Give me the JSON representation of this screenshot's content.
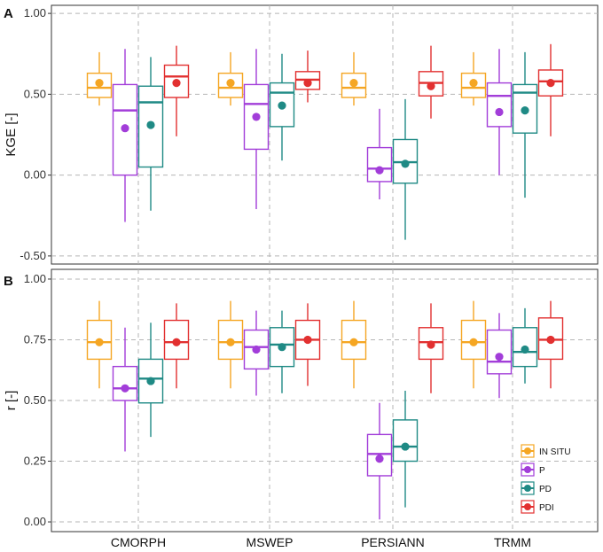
{
  "colors": {
    "IN SITU": "#f5a623",
    "P": "#a23dd9",
    "PD": "#1f8a85",
    "PDI": "#e23030"
  },
  "chart_data": [
    {
      "panel": "A",
      "type": "boxplot",
      "ylabel": "KGE [-]",
      "ylim": [
        -0.55,
        1.05
      ],
      "yticks": [
        -0.5,
        0.0,
        0.5,
        1.0
      ],
      "ytick_labels": [
        "-0.50",
        "0.00",
        "0.50",
        "1.00"
      ],
      "grid": true,
      "categories": [
        "CMORPH",
        "MSWEP",
        "PERSIANN",
        "TRMM"
      ],
      "groups": [
        {
          "category": "CMORPH",
          "series": [
            {
              "name": "IN SITU",
              "whislo": 0.43,
              "q1": 0.48,
              "median": 0.54,
              "q3": 0.63,
              "whishi": 0.76,
              "mean": 0.57
            },
            {
              "name": "P",
              "whislo": -0.29,
              "q1": 0.0,
              "median": 0.4,
              "q3": 0.56,
              "whishi": 0.78,
              "mean": 0.29
            },
            {
              "name": "PD",
              "whislo": -0.22,
              "q1": 0.05,
              "median": 0.45,
              "q3": 0.55,
              "whishi": 0.73,
              "mean": 0.31
            },
            {
              "name": "PDI",
              "whislo": 0.24,
              "q1": 0.48,
              "median": 0.61,
              "q3": 0.68,
              "whishi": 0.8,
              "mean": 0.57
            }
          ]
        },
        {
          "category": "MSWEP",
          "series": [
            {
              "name": "IN SITU",
              "whislo": 0.43,
              "q1": 0.48,
              "median": 0.54,
              "q3": 0.63,
              "whishi": 0.76,
              "mean": 0.57
            },
            {
              "name": "P",
              "whislo": -0.21,
              "q1": 0.16,
              "median": 0.44,
              "q3": 0.56,
              "whishi": 0.78,
              "mean": 0.36
            },
            {
              "name": "PD",
              "whislo": 0.09,
              "q1": 0.3,
              "median": 0.51,
              "q3": 0.57,
              "whishi": 0.75,
              "mean": 0.43
            },
            {
              "name": "PDI",
              "whislo": 0.45,
              "q1": 0.53,
              "median": 0.59,
              "q3": 0.64,
              "whishi": 0.77,
              "mean": 0.57
            }
          ]
        },
        {
          "category": "PERSIANN",
          "series": [
            {
              "name": "IN SITU",
              "whislo": 0.43,
              "q1": 0.48,
              "median": 0.54,
              "q3": 0.63,
              "whishi": 0.76,
              "mean": 0.57
            },
            {
              "name": "P",
              "whislo": -0.15,
              "q1": -0.04,
              "median": 0.04,
              "q3": 0.17,
              "whishi": 0.41,
              "mean": 0.03
            },
            {
              "name": "PD",
              "whislo": -0.4,
              "q1": -0.05,
              "median": 0.08,
              "q3": 0.22,
              "whishi": 0.47,
              "mean": 0.07
            },
            {
              "name": "PDI",
              "whislo": 0.35,
              "q1": 0.49,
              "median": 0.57,
              "q3": 0.64,
              "whishi": 0.8,
              "mean": 0.55
            }
          ]
        },
        {
          "category": "TRMM",
          "series": [
            {
              "name": "IN SITU",
              "whislo": 0.43,
              "q1": 0.48,
              "median": 0.54,
              "q3": 0.63,
              "whishi": 0.76,
              "mean": 0.57
            },
            {
              "name": "P",
              "whislo": 0.0,
              "q1": 0.3,
              "median": 0.49,
              "q3": 0.57,
              "whishi": 0.78,
              "mean": 0.39
            },
            {
              "name": "PD",
              "whislo": -0.14,
              "q1": 0.26,
              "median": 0.51,
              "q3": 0.56,
              "whishi": 0.76,
              "mean": 0.4
            },
            {
              "name": "PDI",
              "whislo": 0.24,
              "q1": 0.49,
              "median": 0.58,
              "q3": 0.65,
              "whishi": 0.81,
              "mean": 0.57
            }
          ]
        }
      ]
    },
    {
      "panel": "B",
      "type": "boxplot",
      "ylabel": "r [-]",
      "ylim": [
        -0.04,
        1.04
      ],
      "yticks": [
        0.0,
        0.25,
        0.5,
        0.75,
        1.0
      ],
      "ytick_labels": [
        "0.00",
        "0.25",
        "0.50",
        "0.75",
        "1.00"
      ],
      "grid": true,
      "categories": [
        "CMORPH",
        "MSWEP",
        "PERSIANN",
        "TRMM"
      ],
      "legend": {
        "position": "bottom-right",
        "entries": [
          "IN SITU",
          "P",
          "PD",
          "PDI"
        ]
      },
      "groups": [
        {
          "category": "CMORPH",
          "series": [
            {
              "name": "IN SITU",
              "whislo": 0.55,
              "q1": 0.67,
              "median": 0.74,
              "q3": 0.83,
              "whishi": 0.91,
              "mean": 0.74
            },
            {
              "name": "P",
              "whislo": 0.29,
              "q1": 0.5,
              "median": 0.55,
              "q3": 0.64,
              "whishi": 0.8,
              "mean": 0.55
            },
            {
              "name": "PD",
              "whislo": 0.35,
              "q1": 0.49,
              "median": 0.59,
              "q3": 0.67,
              "whishi": 0.82,
              "mean": 0.58
            },
            {
              "name": "PDI",
              "whislo": 0.55,
              "q1": 0.67,
              "median": 0.74,
              "q3": 0.83,
              "whishi": 0.9,
              "mean": 0.74
            }
          ]
        },
        {
          "category": "MSWEP",
          "series": [
            {
              "name": "IN SITU",
              "whislo": 0.55,
              "q1": 0.67,
              "median": 0.74,
              "q3": 0.83,
              "whishi": 0.91,
              "mean": 0.74
            },
            {
              "name": "P",
              "whislo": 0.52,
              "q1": 0.63,
              "median": 0.72,
              "q3": 0.79,
              "whishi": 0.87,
              "mean": 0.71
            },
            {
              "name": "PD",
              "whislo": 0.53,
              "q1": 0.64,
              "median": 0.73,
              "q3": 0.8,
              "whishi": 0.87,
              "mean": 0.72
            },
            {
              "name": "PDI",
              "whislo": 0.56,
              "q1": 0.67,
              "median": 0.75,
              "q3": 0.83,
              "whishi": 0.9,
              "mean": 0.75
            }
          ]
        },
        {
          "category": "PERSIANN",
          "series": [
            {
              "name": "IN SITU",
              "whislo": 0.55,
              "q1": 0.67,
              "median": 0.74,
              "q3": 0.83,
              "whishi": 0.91,
              "mean": 0.74
            },
            {
              "name": "P",
              "whislo": 0.01,
              "q1": 0.19,
              "median": 0.28,
              "q3": 0.36,
              "whishi": 0.49,
              "mean": 0.26
            },
            {
              "name": "PD",
              "whislo": 0.06,
              "q1": 0.25,
              "median": 0.31,
              "q3": 0.42,
              "whishi": 0.54,
              "mean": 0.31
            },
            {
              "name": "PDI",
              "whislo": 0.53,
              "q1": 0.67,
              "median": 0.74,
              "q3": 0.8,
              "whishi": 0.9,
              "mean": 0.73
            }
          ]
        },
        {
          "category": "TRMM",
          "series": [
            {
              "name": "IN SITU",
              "whislo": 0.55,
              "q1": 0.67,
              "median": 0.74,
              "q3": 0.83,
              "whishi": 0.91,
              "mean": 0.74
            },
            {
              "name": "P",
              "whislo": 0.51,
              "q1": 0.61,
              "median": 0.66,
              "q3": 0.79,
              "whishi": 0.86,
              "mean": 0.68
            },
            {
              "name": "PD",
              "whislo": 0.57,
              "q1": 0.64,
              "median": 0.7,
              "q3": 0.8,
              "whishi": 0.88,
              "mean": 0.71
            },
            {
              "name": "PDI",
              "whislo": 0.55,
              "q1": 0.67,
              "median": 0.75,
              "q3": 0.84,
              "whishi": 0.91,
              "mean": 0.75
            }
          ]
        }
      ]
    }
  ]
}
